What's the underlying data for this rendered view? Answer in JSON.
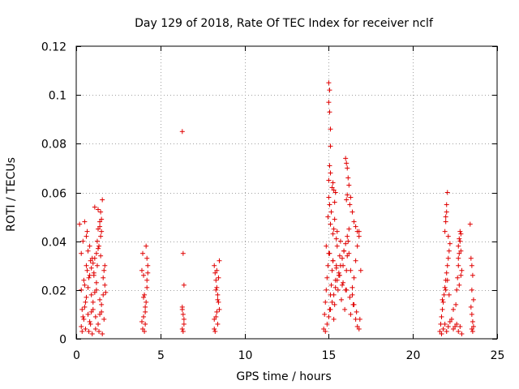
{
  "chart_data": {
    "type": "scatter",
    "title": "Day 129 of 2018, Rate Of TEC Index for receiver nclf",
    "xlabel": "GPS time / hours",
    "ylabel": "ROTI / TECUs",
    "xlim": [
      0,
      25
    ],
    "ylim": [
      0,
      0.12
    ],
    "xticks": [
      0,
      5,
      10,
      15,
      20,
      25
    ],
    "xtick_labels": [
      "0",
      "5",
      "10",
      "15",
      "20",
      "25"
    ],
    "yticks": [
      0,
      0.02,
      0.04,
      0.06,
      0.08,
      0.1,
      0.12
    ],
    "ytick_labels": [
      "0",
      "0.02",
      "0.04",
      "0.06",
      "0.08",
      "0.1",
      "0.12"
    ],
    "grid": true,
    "marker": "+",
    "marker_color": "#e00000",
    "series": [
      {
        "name": "ROTI",
        "x": [
          0.2,
          0.3,
          0.3,
          0.35,
          0.4,
          0.45,
          0.5,
          0.5,
          0.55,
          0.6,
          0.65,
          0.7,
          0.75,
          0.8,
          0.85,
          0.9,
          0.95,
          1.0,
          1.05,
          1.1,
          1.15,
          1.2,
          1.3,
          1.4,
          1.45,
          1.5,
          1.55,
          1.6,
          1.65,
          1.7,
          1.75,
          0.3,
          0.4,
          0.5,
          0.6,
          0.7,
          0.8,
          0.9,
          1.0,
          1.1,
          1.2,
          1.3,
          1.4,
          1.5,
          1.6,
          1.7,
          0.35,
          0.55,
          0.75,
          0.95,
          1.15,
          1.35,
          1.55,
          0.45,
          0.65,
          0.85,
          1.05,
          1.25,
          1.45,
          1.65,
          0.6,
          0.7,
          0.8,
          0.9,
          1.0,
          1.1,
          1.2,
          1.3,
          1.4,
          1.5,
          1.25,
          1.35,
          1.45,
          1.5,
          1.4,
          1.3,
          3.9,
          3.95,
          4.0,
          4.05,
          4.1,
          4.15,
          4.2,
          4.0,
          4.1,
          3.95,
          4.05,
          4.15,
          4.2,
          4.25,
          4.1,
          4.0,
          3.9,
          4.2,
          4.25,
          6.3,
          6.35,
          6.4,
          6.3,
          6.35,
          6.4,
          6.3,
          6.35,
          6.4,
          6.3,
          8.2,
          8.25,
          8.3,
          8.35,
          8.4,
          8.45,
          8.5,
          8.3,
          8.4,
          8.2,
          8.25,
          8.35,
          8.45,
          8.5,
          8.3,
          8.4,
          8.2,
          8.35,
          14.7,
          14.75,
          14.8,
          14.85,
          14.9,
          14.95,
          15.0,
          15.05,
          15.1,
          15.15,
          15.2,
          15.25,
          15.3,
          15.35,
          15.4,
          15.45,
          15.5,
          15.55,
          15.6,
          15.65,
          15.7,
          15.75,
          15.8,
          15.85,
          15.9,
          15.95,
          16.0,
          16.05,
          16.1,
          16.15,
          16.2,
          16.3,
          16.4,
          16.5,
          16.6,
          16.7,
          16.8,
          16.9,
          14.8,
          14.9,
          15.0,
          15.1,
          15.2,
          15.3,
          15.4,
          15.5,
          15.6,
          15.7,
          15.8,
          15.9,
          16.0,
          16.1,
          16.2,
          16.3,
          16.4,
          16.5,
          16.6,
          16.7,
          16.8,
          14.85,
          15.05,
          15.25,
          15.45,
          15.65,
          15.85,
          16.05,
          16.25,
          16.45,
          16.65,
          16.85,
          15.0,
          15.0,
          15.05,
          15.05,
          15.1,
          15.1,
          15.0,
          15.05,
          15.1,
          15.0,
          15.05,
          14.95,
          15.1,
          15.15,
          15.2,
          15.25,
          15.3,
          15.35,
          15.4,
          15.25,
          15.3,
          15.35,
          15.45,
          15.5,
          16.0,
          16.05,
          16.1,
          16.15,
          16.2,
          16.1,
          16.05,
          16.25,
          16.3,
          16.4,
          16.5,
          16.6,
          16.7,
          16.8,
          21.6,
          21.65,
          21.7,
          21.75,
          21.8,
          21.85,
          21.9,
          21.95,
          22.0,
          22.05,
          22.1,
          22.15,
          22.2,
          22.3,
          22.4,
          22.5,
          22.6,
          22.65,
          22.7,
          22.75,
          22.8,
          22.85,
          22.9,
          21.7,
          21.8,
          21.9,
          22.0,
          22.1,
          22.2,
          22.4,
          22.6,
          22.7,
          22.8,
          22.9,
          21.75,
          21.95,
          22.05,
          22.15,
          22.55,
          22.75,
          22.85,
          21.9,
          21.95,
          22.0,
          22.05,
          22.1,
          21.95,
          22.0,
          22.7,
          22.75,
          22.8,
          22.85,
          22.7,
          23.4,
          23.45,
          23.5,
          23.55,
          23.6,
          23.45,
          23.5,
          23.55,
          23.6,
          23.5,
          23.55,
          23.5
        ],
        "y": [
          0.047,
          0.02,
          0.035,
          0.012,
          0.04,
          0.008,
          0.022,
          0.048,
          0.015,
          0.03,
          0.044,
          0.01,
          0.025,
          0.038,
          0.006,
          0.018,
          0.033,
          0.012,
          0.027,
          0.054,
          0.009,
          0.02,
          0.045,
          0.016,
          0.052,
          0.011,
          0.057,
          0.025,
          0.008,
          0.03,
          0.019,
          0.005,
          0.009,
          0.013,
          0.017,
          0.021,
          0.007,
          0.011,
          0.015,
          0.019,
          0.023,
          0.006,
          0.01,
          0.014,
          0.018,
          0.022,
          0.003,
          0.004,
          0.003,
          0.002,
          0.004,
          0.003,
          0.002,
          0.024,
          0.028,
          0.032,
          0.026,
          0.03,
          0.034,
          0.028,
          0.042,
          0.036,
          0.026,
          0.029,
          0.031,
          0.033,
          0.035,
          0.037,
          0.046,
          0.049,
          0.04,
          0.038,
          0.042,
          0.044,
          0.048,
          0.053,
          0.028,
          0.035,
          0.026,
          0.018,
          0.013,
          0.038,
          0.033,
          0.009,
          0.006,
          0.004,
          0.003,
          0.015,
          0.021,
          0.027,
          0.011,
          0.017,
          0.007,
          0.024,
          0.03,
          0.085,
          0.035,
          0.022,
          0.013,
          0.01,
          0.006,
          0.004,
          0.003,
          0.008,
          0.012,
          0.03,
          0.027,
          0.024,
          0.021,
          0.018,
          0.015,
          0.012,
          0.009,
          0.006,
          0.004,
          0.003,
          0.028,
          0.025,
          0.032,
          0.02,
          0.016,
          0.008,
          0.011,
          0.004,
          0.01,
          0.015,
          0.02,
          0.025,
          0.03,
          0.035,
          0.012,
          0.018,
          0.022,
          0.028,
          0.032,
          0.008,
          0.014,
          0.024,
          0.03,
          0.038,
          0.02,
          0.026,
          0.034,
          0.04,
          0.016,
          0.022,
          0.03,
          0.036,
          0.012,
          0.02,
          0.028,
          0.034,
          0.04,
          0.045,
          0.01,
          0.018,
          0.025,
          0.032,
          0.038,
          0.044,
          0.028,
          0.003,
          0.006,
          0.009,
          0.012,
          0.015,
          0.018,
          0.021,
          0.024,
          0.027,
          0.03,
          0.033,
          0.036,
          0.039,
          0.042,
          0.035,
          0.028,
          0.021,
          0.014,
          0.008,
          0.005,
          0.004,
          0.038,
          0.035,
          0.032,
          0.029,
          0.026,
          0.023,
          0.02,
          0.017,
          0.014,
          0.011,
          0.008,
          0.105,
          0.097,
          0.102,
          0.093,
          0.086,
          0.079,
          0.065,
          0.071,
          0.068,
          0.058,
          0.055,
          0.05,
          0.047,
          0.052,
          0.062,
          0.064,
          0.061,
          0.056,
          0.06,
          0.043,
          0.045,
          0.049,
          0.041,
          0.044,
          0.074,
          0.072,
          0.07,
          0.066,
          0.063,
          0.059,
          0.057,
          0.055,
          0.058,
          0.052,
          0.048,
          0.046,
          0.044,
          0.042,
          0.003,
          0.006,
          0.009,
          0.012,
          0.015,
          0.018,
          0.021,
          0.024,
          0.027,
          0.03,
          0.033,
          0.036,
          0.039,
          0.008,
          0.012,
          0.005,
          0.02,
          0.025,
          0.03,
          0.035,
          0.04,
          0.043,
          0.028,
          0.002,
          0.004,
          0.006,
          0.003,
          0.005,
          0.007,
          0.004,
          0.006,
          0.003,
          0.005,
          0.002,
          0.016,
          0.02,
          0.024,
          0.018,
          0.014,
          0.022,
          0.026,
          0.044,
          0.048,
          0.052,
          0.06,
          0.042,
          0.05,
          0.055,
          0.038,
          0.041,
          0.044,
          0.036,
          0.033,
          0.047,
          0.033,
          0.03,
          0.026,
          0.016,
          0.013,
          0.01,
          0.007,
          0.005,
          0.004,
          0.003,
          0.02
        ]
      }
    ]
  }
}
